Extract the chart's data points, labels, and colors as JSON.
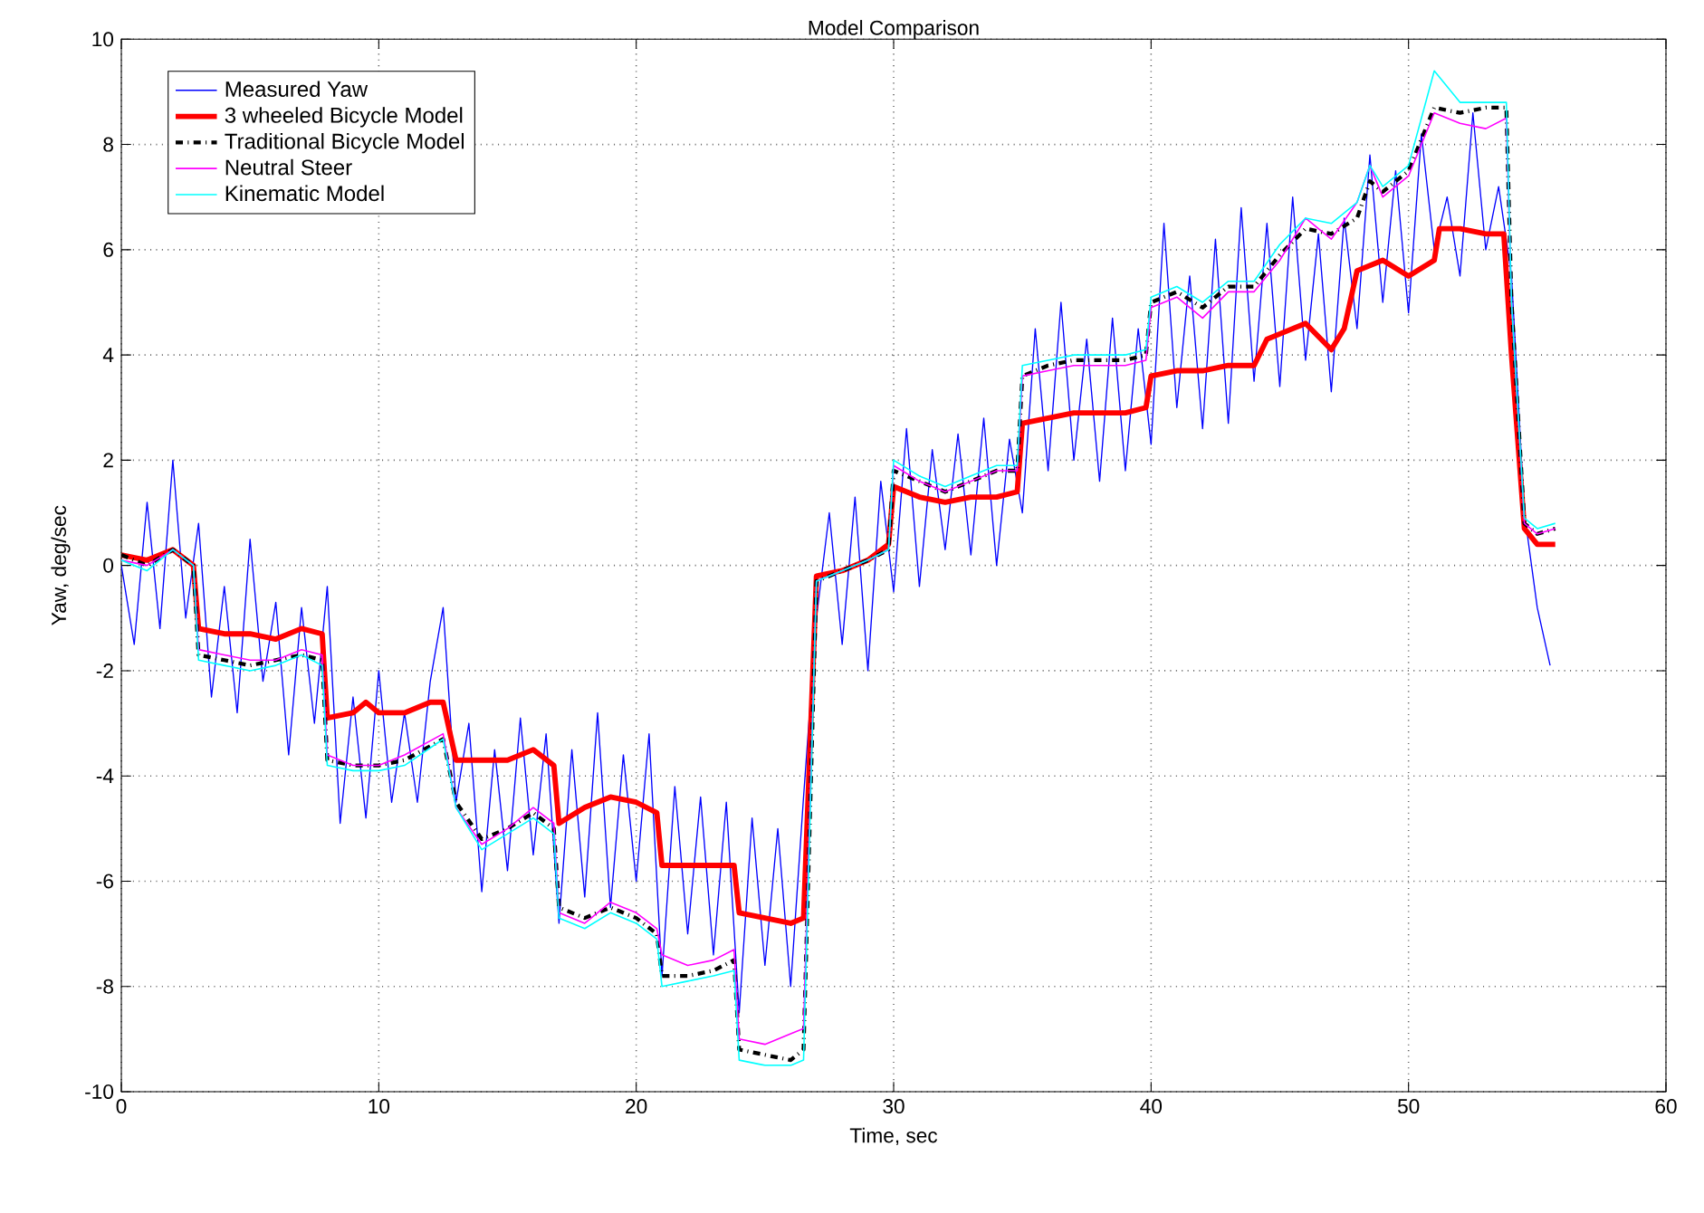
{
  "chart_data": {
    "type": "line",
    "title": "Model Comparison",
    "xlabel": "Time, sec",
    "ylabel": "Yaw, deg/sec",
    "xlim": [
      0,
      60
    ],
    "xticks": [
      0,
      10,
      20,
      30,
      40,
      50,
      60
    ],
    "ylim": [
      -10,
      10
    ],
    "yticks": [
      -10,
      -8,
      -6,
      -4,
      -2,
      0,
      2,
      4,
      6,
      8,
      10
    ],
    "grid": true,
    "legend": "top left",
    "series": [
      {
        "name": "Measured Yaw",
        "color": "#0000ff",
        "line_style": "solid",
        "x": [
          0,
          0.5,
          1,
          1.5,
          2,
          2.5,
          3,
          3.5,
          4,
          4.5,
          5,
          5.5,
          6,
          6.5,
          7,
          7.5,
          8,
          8.5,
          9,
          9.5,
          10,
          10.5,
          11,
          11.5,
          12,
          12.5,
          13,
          13.5,
          14,
          14.5,
          15,
          15.5,
          16,
          16.5,
          17,
          17.5,
          18,
          18.5,
          19,
          19.5,
          20,
          20.5,
          21,
          21.5,
          22,
          22.5,
          23,
          23.5,
          24,
          24.5,
          25,
          25.5,
          26,
          26.5,
          27,
          27.5,
          28,
          28.5,
          29,
          29.5,
          30,
          30.5,
          31,
          31.5,
          32,
          32.5,
          33,
          33.5,
          34,
          34.5,
          35,
          35.5,
          36,
          36.5,
          37,
          37.5,
          38,
          38.5,
          39,
          39.5,
          40,
          40.5,
          41,
          41.5,
          42,
          42.5,
          43,
          43.5,
          44,
          44.5,
          45,
          45.5,
          46,
          46.5,
          47,
          47.5,
          48,
          48.5,
          49,
          49.5,
          50,
          50.5,
          51,
          51.5,
          52,
          52.5,
          53,
          53.5,
          54,
          54.5,
          55,
          55.5
        ],
        "values": [
          0.0,
          -1.5,
          1.2,
          -1.2,
          2.0,
          -1.0,
          0.8,
          -2.5,
          -0.4,
          -2.8,
          0.5,
          -2.2,
          -0.7,
          -3.6,
          -0.8,
          -3.0,
          -0.4,
          -4.9,
          -2.5,
          -4.8,
          -2.0,
          -4.5,
          -2.8,
          -4.5,
          -2.2,
          -0.8,
          -4.5,
          -3.0,
          -6.2,
          -3.5,
          -5.8,
          -2.9,
          -5.5,
          -3.2,
          -6.8,
          -3.5,
          -6.3,
          -2.8,
          -6.5,
          -3.6,
          -6.0,
          -3.2,
          -7.8,
          -4.2,
          -7.0,
          -4.4,
          -7.4,
          -4.5,
          -8.5,
          -4.8,
          -7.6,
          -5.0,
          -8.0,
          -4.4,
          -1.0,
          1.0,
          -1.5,
          1.3,
          -2.0,
          1.6,
          -0.5,
          2.6,
          -0.4,
          2.2,
          0.3,
          2.5,
          0.2,
          2.8,
          0.0,
          2.4,
          1.0,
          4.5,
          1.8,
          5.0,
          2.0,
          4.3,
          1.6,
          4.7,
          1.8,
          4.5,
          2.3,
          6.5,
          3.0,
          5.5,
          2.6,
          6.2,
          2.7,
          6.8,
          3.5,
          6.5,
          3.4,
          7.0,
          3.9,
          6.3,
          3.3,
          6.6,
          4.5,
          7.8,
          5.0,
          7.5,
          4.8,
          8.2,
          6.0,
          7.0,
          5.5,
          8.6,
          6.0,
          7.2,
          5.5,
          1.0,
          -0.8,
          -1.9
        ]
      },
      {
        "name": "3 wheeled Bicycle Model",
        "color": "#ff0000",
        "line_style": "solid",
        "x": [
          0,
          1,
          2,
          2.8,
          3,
          4,
          5,
          6,
          7,
          7.8,
          8,
          9,
          9.5,
          10,
          11,
          12,
          12.5,
          13,
          14,
          15,
          16,
          16.8,
          17,
          18,
          19,
          20,
          20.8,
          21,
          22,
          23,
          23.8,
          24,
          25,
          26,
          26.5,
          27,
          28,
          29,
          29.8,
          30,
          31,
          32,
          33,
          34,
          34.8,
          35,
          36,
          37,
          38,
          39,
          39.8,
          40,
          41,
          42,
          43,
          44,
          44.5,
          45,
          46,
          47,
          47.5,
          48,
          49,
          50,
          51,
          51.2,
          52,
          53,
          53.7,
          54,
          54.5,
          55,
          55.7
        ],
        "values": [
          0.2,
          0.1,
          0.3,
          0,
          -1.2,
          -1.3,
          -1.3,
          -1.4,
          -1.2,
          -1.3,
          -2.9,
          -2.8,
          -2.6,
          -2.8,
          -2.8,
          -2.6,
          -2.6,
          -3.7,
          -3.7,
          -3.7,
          -3.5,
          -3.8,
          -4.9,
          -4.6,
          -4.4,
          -4.5,
          -4.7,
          -5.7,
          -5.7,
          -5.7,
          -5.7,
          -6.6,
          -6.7,
          -6.8,
          -6.7,
          -0.2,
          -0.1,
          0.1,
          0.4,
          1.5,
          1.3,
          1.2,
          1.3,
          1.3,
          1.4,
          2.7,
          2.8,
          2.9,
          2.9,
          2.9,
          3.0,
          3.6,
          3.7,
          3.7,
          3.8,
          3.8,
          4.3,
          4.4,
          4.6,
          4.1,
          4.5,
          5.6,
          5.8,
          5.5,
          5.8,
          6.4,
          6.4,
          6.3,
          6.3,
          4.0,
          0.7,
          0.4,
          0.4
        ]
      },
      {
        "name": "Traditional Bicycle Model",
        "color": "#000000",
        "line_style": "dashdot",
        "x": [
          0,
          1,
          2,
          2.8,
          3,
          4,
          5,
          6,
          7,
          7.8,
          8,
          9,
          10,
          11,
          12.5,
          13,
          14,
          15,
          16,
          16.8,
          17,
          18,
          19,
          20,
          20.8,
          21,
          22,
          23,
          23.8,
          24,
          25,
          26,
          26.5,
          27,
          28,
          29,
          29.8,
          30,
          31,
          32,
          33,
          34,
          34.8,
          35,
          36,
          37,
          38,
          39,
          39.8,
          40,
          41,
          42,
          43,
          44,
          45,
          46,
          47,
          48,
          48.5,
          49,
          50,
          51,
          52,
          53,
          53.8,
          54,
          54.5,
          55,
          55.7
        ],
        "values": [
          0.2,
          0.0,
          0.3,
          0.0,
          -1.7,
          -1.8,
          -1.9,
          -1.8,
          -1.7,
          -1.8,
          -3.7,
          -3.8,
          -3.8,
          -3.7,
          -3.3,
          -4.5,
          -5.2,
          -5.0,
          -4.7,
          -5.0,
          -6.5,
          -6.7,
          -6.5,
          -6.7,
          -7.0,
          -7.8,
          -7.8,
          -7.7,
          -7.5,
          -9.2,
          -9.3,
          -9.4,
          -9.2,
          -0.3,
          -0.1,
          0.1,
          0.3,
          1.8,
          1.6,
          1.4,
          1.6,
          1.8,
          1.8,
          3.6,
          3.8,
          3.9,
          3.9,
          3.9,
          4.0,
          5.0,
          5.2,
          4.9,
          5.3,
          5.3,
          5.9,
          6.4,
          6.3,
          6.6,
          7.3,
          7.1,
          7.5,
          8.7,
          8.6,
          8.7,
          8.7,
          5.0,
          0.8,
          0.6,
          0.7
        ]
      },
      {
        "name": "Neutral Steer",
        "color": "#ff00ff",
        "line_style": "solid",
        "x": [
          0,
          1,
          2,
          2.8,
          3,
          4,
          5,
          6,
          7,
          7.8,
          8,
          9,
          10,
          11,
          12.5,
          13,
          14,
          15,
          16,
          16.8,
          17,
          18,
          19,
          20,
          20.8,
          21,
          22,
          23,
          23.8,
          24,
          25,
          26,
          26.5,
          27,
          28,
          29,
          29.8,
          30,
          31,
          32,
          33,
          34,
          34.8,
          35,
          36,
          37,
          38,
          39,
          39.8,
          40,
          41,
          42,
          43,
          44,
          45,
          46,
          47,
          48,
          48.5,
          49,
          50,
          51,
          52,
          53,
          53.8,
          54,
          54.5,
          55,
          55.7
        ],
        "values": [
          0.1,
          0.0,
          0.3,
          0.0,
          -1.6,
          -1.7,
          -1.8,
          -1.8,
          -1.6,
          -1.7,
          -3.6,
          -3.8,
          -3.8,
          -3.6,
          -3.2,
          -4.6,
          -5.3,
          -5.0,
          -4.6,
          -4.9,
          -6.6,
          -6.8,
          -6.4,
          -6.6,
          -6.9,
          -7.4,
          -7.6,
          -7.5,
          -7.3,
          -9.0,
          -9.1,
          -8.9,
          -8.8,
          -0.3,
          -0.1,
          0.1,
          0.3,
          1.9,
          1.6,
          1.4,
          1.6,
          1.8,
          1.8,
          3.6,
          3.7,
          3.8,
          3.8,
          3.8,
          3.9,
          4.9,
          5.1,
          4.7,
          5.2,
          5.2,
          5.8,
          6.6,
          6.2,
          6.9,
          7.6,
          7.0,
          7.4,
          8.6,
          8.4,
          8.3,
          8.5,
          5.0,
          0.8,
          0.6,
          0.7
        ]
      },
      {
        "name": "Kinematic Model",
        "color": "#00ffff",
        "line_style": "solid",
        "x": [
          0,
          1,
          2,
          2.8,
          3,
          4,
          5,
          6,
          7,
          7.8,
          8,
          9,
          10,
          11,
          12.5,
          13,
          14,
          15,
          16,
          16.8,
          17,
          18,
          19,
          20,
          20.8,
          21,
          22,
          23,
          23.8,
          24,
          25,
          26,
          26.5,
          27,
          28,
          29,
          29.8,
          30,
          31,
          32,
          33,
          34,
          34.8,
          35,
          36,
          37,
          38,
          39,
          39.8,
          40,
          41,
          42,
          43,
          44,
          45,
          46,
          47,
          48,
          48.5,
          49,
          50,
          51,
          52,
          53,
          53.8,
          54,
          54.5,
          55,
          55.7
        ],
        "values": [
          0.1,
          -0.1,
          0.3,
          0.0,
          -1.8,
          -1.9,
          -2.0,
          -1.9,
          -1.7,
          -1.9,
          -3.8,
          -3.9,
          -3.9,
          -3.8,
          -3.3,
          -4.6,
          -5.4,
          -5.1,
          -4.8,
          -5.1,
          -6.7,
          -6.9,
          -6.6,
          -6.8,
          -7.1,
          -8.0,
          -7.9,
          -7.8,
          -7.7,
          -9.4,
          -9.5,
          -9.5,
          -9.4,
          -0.3,
          -0.1,
          0.1,
          0.3,
          2.0,
          1.7,
          1.5,
          1.7,
          1.9,
          1.9,
          3.8,
          3.9,
          4.0,
          4.0,
          4.0,
          4.1,
          5.1,
          5.3,
          5.0,
          5.4,
          5.4,
          6.1,
          6.6,
          6.5,
          6.9,
          7.6,
          7.2,
          7.6,
          9.4,
          8.8,
          8.8,
          8.8,
          5.0,
          0.9,
          0.7,
          0.8
        ]
      }
    ]
  }
}
